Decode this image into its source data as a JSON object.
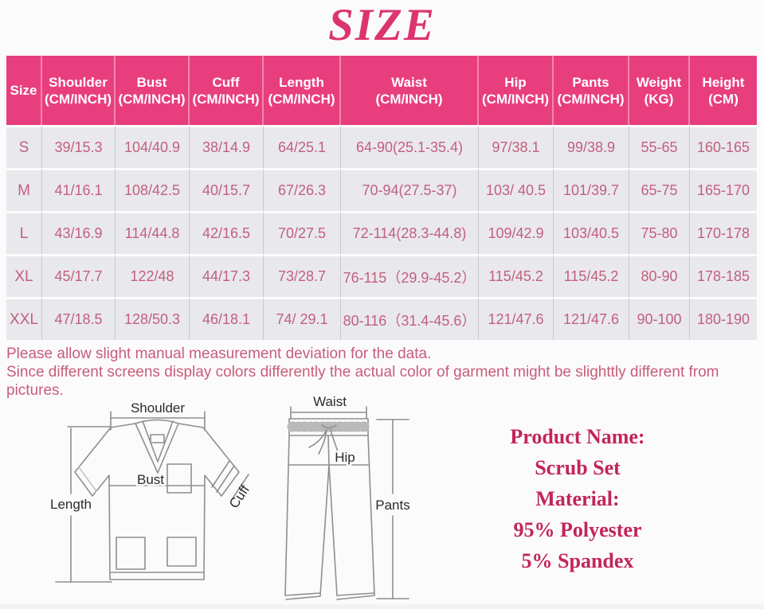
{
  "title": "SIZE",
  "table": {
    "columns": [
      {
        "label": "Size",
        "unit": ""
      },
      {
        "label": "Shoulder",
        "unit": "(CM/INCH)"
      },
      {
        "label": "Bust",
        "unit": "(CM/INCH)"
      },
      {
        "label": "Cuff",
        "unit": "(CM/INCH)"
      },
      {
        "label": "Length",
        "unit": "(CM/INCH)"
      },
      {
        "label": "Waist",
        "unit": "(CM/INCH)"
      },
      {
        "label": "Hip",
        "unit": "(CM/INCH)"
      },
      {
        "label": "Pants",
        "unit": "(CM/INCH)"
      },
      {
        "label": "Weight",
        "unit": "(KG)"
      },
      {
        "label": "Height",
        "unit": "(CM)"
      }
    ],
    "rows": [
      {
        "size": "S",
        "cells": [
          "39/15.3",
          "104/40.9",
          "38/14.9",
          "64/25.1",
          "64-90(25.1-35.4)",
          "97/38.1",
          "99/38.9",
          "55-65",
          "160-165"
        ]
      },
      {
        "size": "M",
        "cells": [
          "41/16.1",
          "108/42.5",
          "40/15.7",
          "67/26.3",
          "70-94(27.5-37)",
          "103/ 40.5",
          "101/39.7",
          "65-75",
          "165-170"
        ]
      },
      {
        "size": "L",
        "cells": [
          "43/16.9",
          "114/44.8",
          "42/16.5",
          "70/27.5",
          "72-114(28.3-44.8)",
          "109/42.9",
          "103/40.5",
          "75-80",
          "170-178"
        ]
      },
      {
        "size": "XL",
        "cells": [
          "45/17.7",
          "122/48",
          "44/17.3",
          "73/28.7",
          "76-115（29.9-45.2）",
          "115/45.2",
          "115/45.2",
          "80-90",
          "178-185"
        ]
      },
      {
        "size": "XXL",
        "cells": [
          "47/18.5",
          "128/50.3",
          "46/18.1",
          "74/ 29.1",
          "80-116（31.4-45.6）",
          "121/47.6",
          "121/47.6",
          "90-100",
          "180-190"
        ]
      }
    ]
  },
  "notes": {
    "line1": "Please allow slight manual measurement deviation for the data.",
    "line2": "Since different screens display colors differently the actual color of garment might be slighttly different from pictures."
  },
  "diagrams": {
    "top": {
      "shoulder": "Shoulder",
      "bust": "Bust",
      "length": "Length",
      "cuff": "Cuff"
    },
    "pants": {
      "waist": "Waist",
      "hip": "Hip",
      "pants": "Pants"
    }
  },
  "product_info": {
    "name_label": "Product Name:",
    "name_value": "Scrub Set",
    "material_label": "Material:",
    "material_line1": "95% Polyester",
    "material_line2": "5% Spandex"
  },
  "colors": {
    "title_pink": "#DB3470",
    "header_pink": "#E83E7E",
    "cell_background": "#E9E8ED",
    "cell_text": "#C2607E",
    "notes_text": "#C75D7B",
    "product_text": "#C2255C"
  }
}
